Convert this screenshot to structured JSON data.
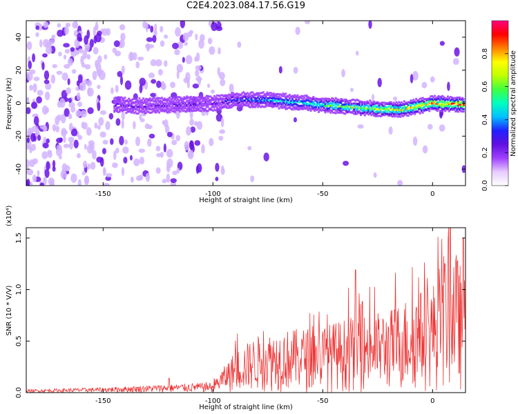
{
  "title": "C2E4.2023.084.17.56.G19",
  "chart_data": [
    {
      "type": "heatmap",
      "xlabel": "Height of straight line (km)",
      "ylabel": "Frequency (Hz)",
      "xlim": [
        -185,
        15
      ],
      "ylim": [
        -50,
        50
      ],
      "xticks": [
        -150,
        -100,
        -50,
        0
      ],
      "yticks": [
        -40,
        -20,
        0,
        20,
        40
      ],
      "colorbar": {
        "label": "Normalized spectral amplitude",
        "range": [
          0.0,
          1.0
        ],
        "ticks": [
          0.0,
          0.2,
          0.4,
          0.6,
          0.8
        ],
        "colormap": [
          "#ffffff",
          "#e6ccff",
          "#a040ff",
          "#6010e0",
          "#2020ff",
          "#00c0ff",
          "#00ffc0",
          "#40ff40",
          "#c0ff00",
          "#ffff00",
          "#ff8000",
          "#ff0000",
          "#ff0080"
        ]
      },
      "ridge": {
        "description": "signal ridge",
        "points": [
          {
            "x": -140,
            "y": -2
          },
          {
            "x": -100,
            "y": 0
          },
          {
            "x": -90,
            "y": 2
          },
          {
            "x": -75,
            "y": 2
          },
          {
            "x": -50,
            "y": -1
          },
          {
            "x": -30,
            "y": -3
          },
          {
            "x": -15,
            "y": -4
          },
          {
            "x": 0,
            "y": 0
          },
          {
            "x": 15,
            "y": -1
          }
        ]
      }
    },
    {
      "type": "line",
      "xlabel": "Height of straight line (km)",
      "ylabel": "SNR (10 * V/V)",
      "yscale_note": "(x10⁴)",
      "xlim": [
        -185,
        15
      ],
      "ylim": [
        0,
        1.6
      ],
      "xticks": [
        -150,
        -100,
        -50,
        0
      ],
      "yticks": [
        0.0,
        0.5,
        1.0,
        1.5
      ],
      "series": [
        {
          "color": "#ee3333",
          "envelope": [
            {
              "x": -185,
              "y": 0.03
            },
            {
              "x": -150,
              "y": 0.05
            },
            {
              "x": -120,
              "y": 0.08
            },
            {
              "x": -100,
              "y": 0.1
            },
            {
              "x": -90,
              "y": 0.4
            },
            {
              "x": -80,
              "y": 0.55
            },
            {
              "x": -70,
              "y": 0.6
            },
            {
              "x": -50,
              "y": 0.65
            },
            {
              "x": -35,
              "y": 0.75
            },
            {
              "x": -20,
              "y": 0.8
            },
            {
              "x": -10,
              "y": 0.95
            },
            {
              "x": 0,
              "y": 1.05
            },
            {
              "x": 8,
              "y": 1.55
            },
            {
              "x": 15,
              "y": 1.1
            }
          ],
          "peaks": [
            {
              "x": -35,
              "y": 1.19
            },
            {
              "x": 8,
              "y": 1.6
            },
            {
              "x": 14,
              "y": 1.5
            },
            {
              "x": -120,
              "y": 0.14
            }
          ]
        }
      ]
    }
  ]
}
